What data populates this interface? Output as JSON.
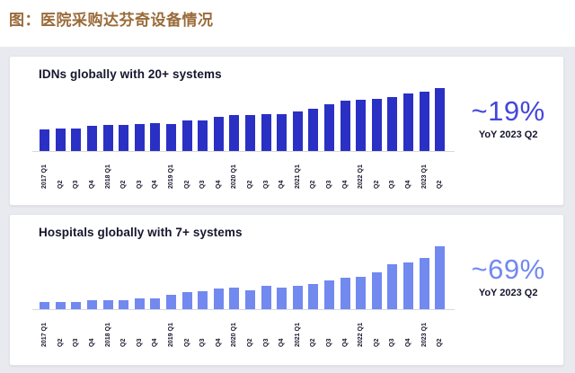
{
  "page": {
    "title": "图：医院采购达芬奇设备情况",
    "title_color": "#9a6b3a",
    "background_color": "#e9eaef",
    "card_background": "#ffffff"
  },
  "chart_data": [
    {
      "type": "bar",
      "title": "IDNs globally with 20+ systems",
      "categories": [
        "2017 Q1",
        "Q2",
        "Q3",
        "Q4",
        "2018 Q1",
        "Q2",
        "Q3",
        "Q4",
        "2019 Q1",
        "Q2",
        "Q3",
        "Q4",
        "2020 Q1",
        "Q2",
        "Q3",
        "Q4",
        "2021 Q1",
        "Q2",
        "Q3",
        "Q4",
        "2022 Q1",
        "Q2",
        "Q3",
        "Q4",
        "2023 Q1",
        "Q2"
      ],
      "values": [
        34,
        36,
        36,
        40,
        41,
        41,
        43,
        44,
        43,
        49,
        48,
        54,
        57,
        57,
        58,
        59,
        63,
        67,
        74,
        80,
        82,
        83,
        86,
        91,
        95,
        100
      ],
      "values_note": "no y-axis shown; values are relative bar heights normalized to max=100",
      "xlabel": "",
      "ylabel": "",
      "ylim": [
        0,
        100
      ],
      "grid": false,
      "legend": "none",
      "bar_color": "#2b30c4",
      "annotation": {
        "value": "~19%",
        "label": "YoY 2023 Q2",
        "color": "#4347da"
      }
    },
    {
      "type": "bar",
      "title": "Hospitals globally with 7+ systems",
      "categories": [
        "2017 Q1",
        "Q2",
        "Q3",
        "Q4",
        "2018 Q1",
        "Q2",
        "Q3",
        "Q4",
        "2019 Q1",
        "Q2",
        "Q3",
        "Q4",
        "2020 Q1",
        "Q2",
        "Q3",
        "Q4",
        "2021 Q1",
        "Q2",
        "Q3",
        "Q4",
        "2022 Q1",
        "Q2",
        "Q3",
        "Q4",
        "2023 Q1",
        "Q2"
      ],
      "values": [
        12,
        12,
        12,
        15,
        15,
        15,
        17,
        17,
        23,
        27,
        28,
        33,
        35,
        30,
        37,
        35,
        37,
        40,
        46,
        50,
        52,
        59,
        72,
        74,
        82,
        100
      ],
      "values_note": "no y-axis shown; values are relative bar heights normalized to max=100",
      "xlabel": "",
      "ylabel": "",
      "ylim": [
        0,
        100
      ],
      "grid": false,
      "legend": "none",
      "bar_color": "#7289ef",
      "annotation": {
        "value": "~69%",
        "label": "YoY 2023 Q2",
        "color": "#7289ef"
      }
    }
  ]
}
